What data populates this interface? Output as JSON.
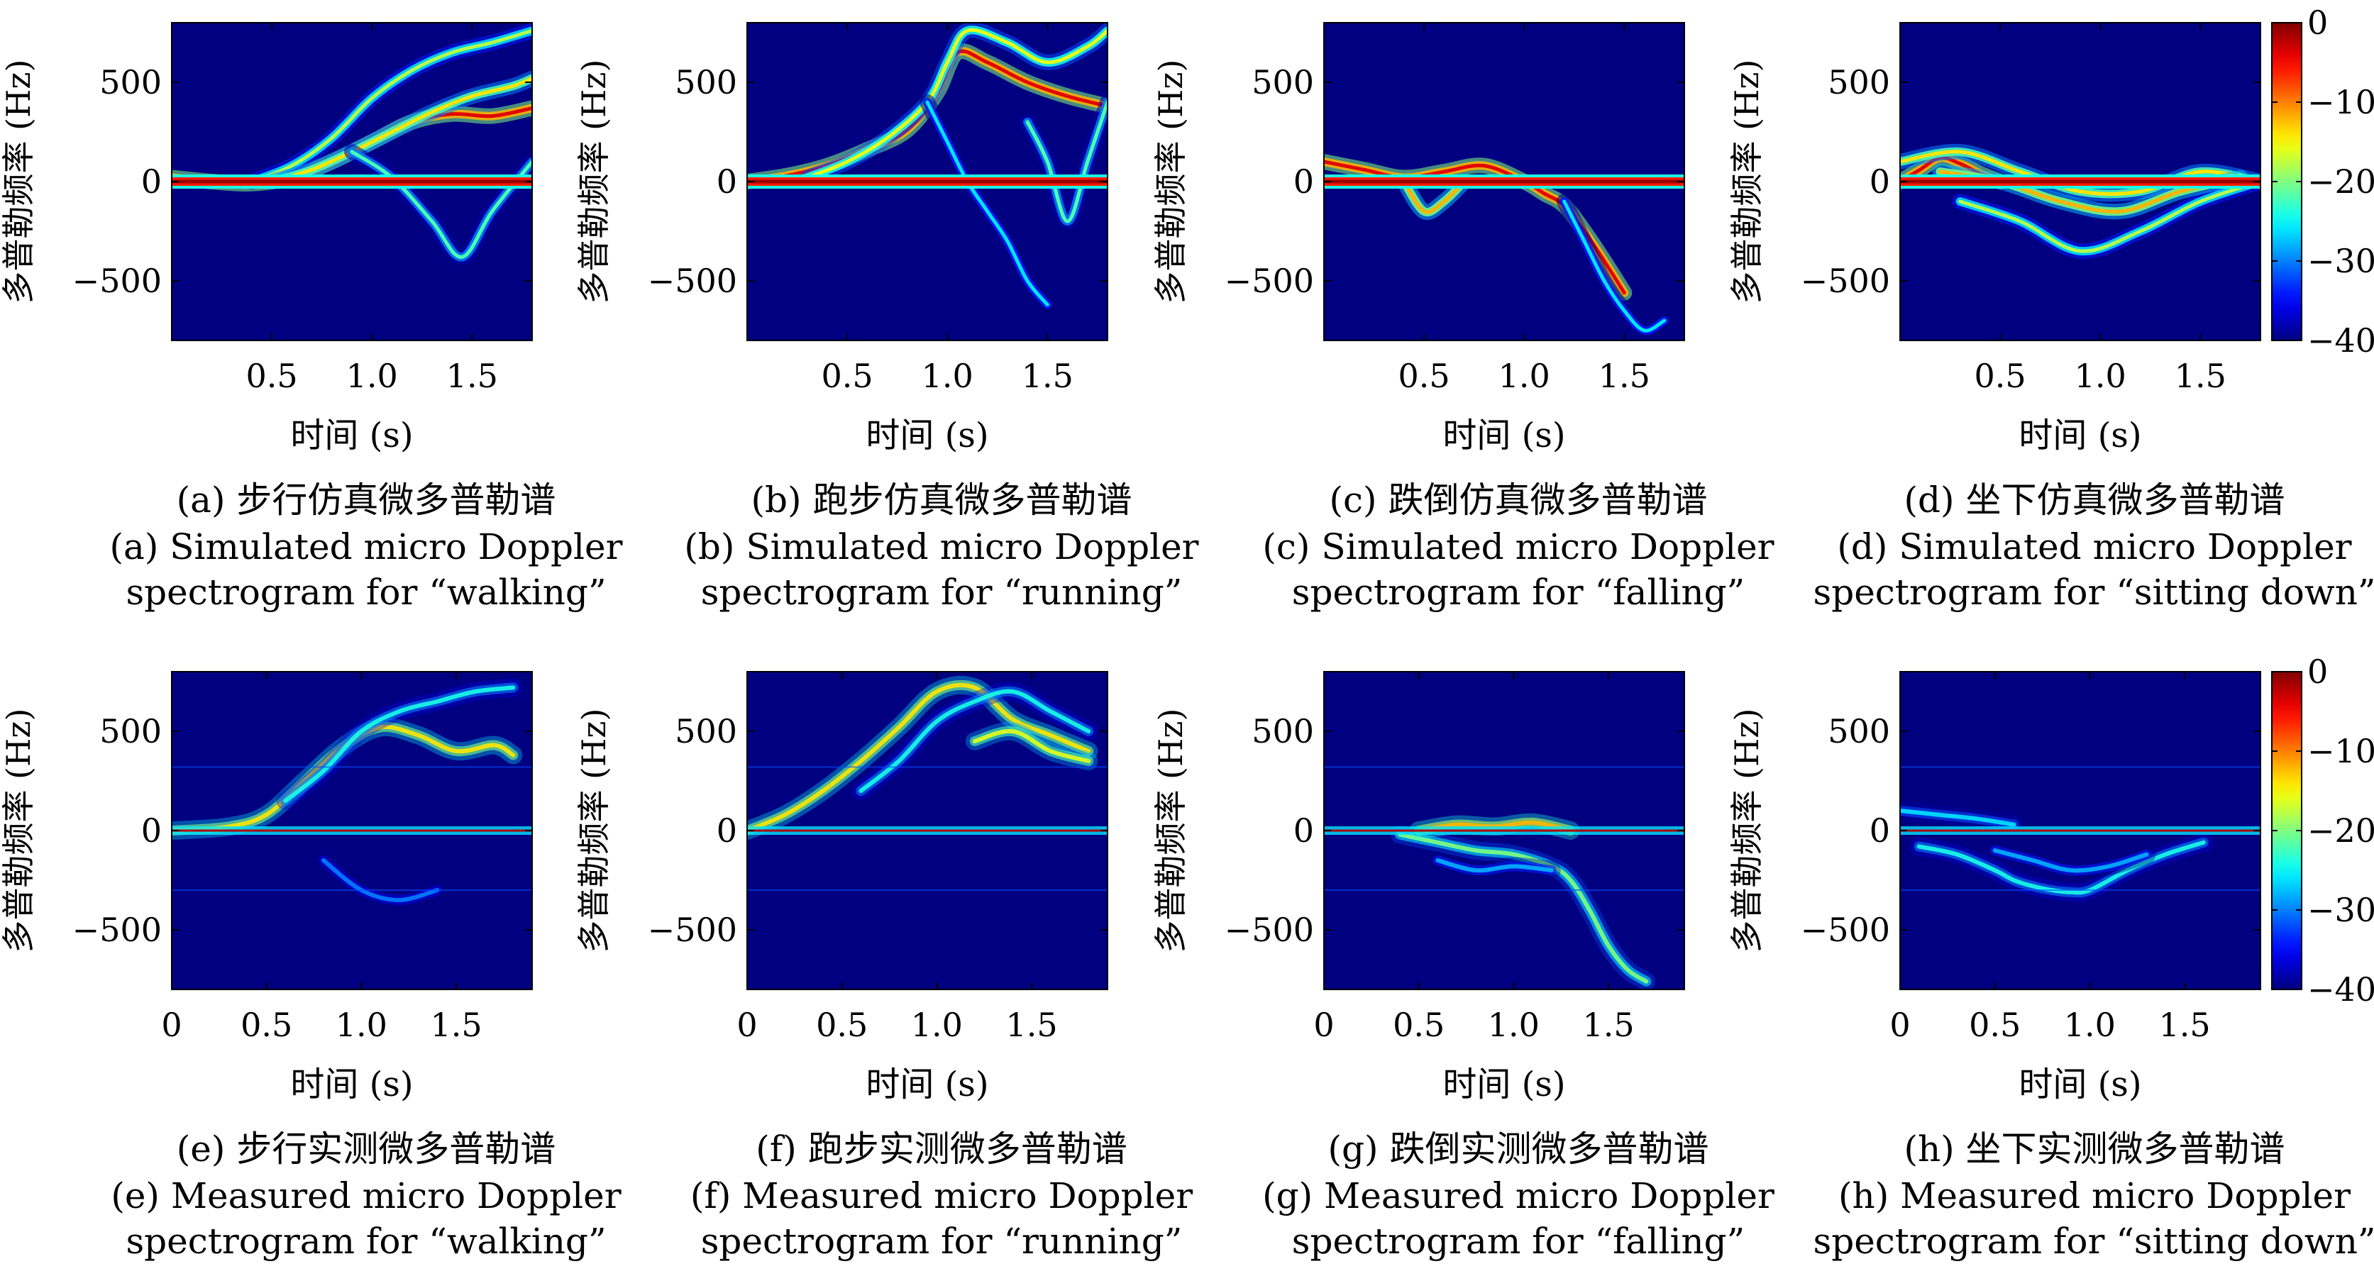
{
  "colorbar": {
    "ticks": [
      "0",
      "−10",
      "−20",
      "−30",
      "−40"
    ],
    "colormap": "jet"
  },
  "chart_data": [
    {
      "type": "heatmap",
      "id": "a",
      "caption_cn": "(a) 步行仿真微多普勒谱",
      "caption_en_1": "(a) Simulated micro Doppler",
      "caption_en_2": "spectrogram for “walking”",
      "xlabel": "时间 (s)",
      "ylabel": "多普勒频率 (Hz)",
      "xticks": [
        "0.5",
        "1.0",
        "1.5"
      ],
      "yticks": [
        "500",
        "0",
        "−500"
      ],
      "xlim": [
        0,
        1.8
      ],
      "ylim": [
        -800,
        800
      ],
      "zlim": [
        -40,
        0
      ],
      "ridges": [
        {
          "t": [
            0,
            0.2,
            0.4,
            0.6,
            0.8,
            1.0,
            1.2,
            1.4,
            1.6,
            1.8
          ],
          "f": [
            20,
            0,
            -10,
            20,
            100,
            200,
            300,
            340,
            330,
            370
          ],
          "level": -4
        },
        {
          "t": [
            0.4,
            0.6,
            0.8,
            1.0,
            1.2,
            1.4,
            1.6,
            1.8
          ],
          "f": [
            0,
            80,
            220,
            420,
            560,
            650,
            700,
            760
          ],
          "level": -18
        },
        {
          "t": [
            0.5,
            0.7,
            0.9,
            1.1,
            1.3,
            1.5,
            1.7,
            1.8
          ],
          "f": [
            0,
            60,
            150,
            250,
            350,
            430,
            480,
            520
          ],
          "level": -14
        },
        {
          "t": [
            0.9,
            1.1,
            1.3,
            1.45,
            1.6,
            1.8
          ],
          "f": [
            150,
            20,
            -200,
            -380,
            -150,
            100
          ],
          "level": -22
        }
      ]
    },
    {
      "type": "heatmap",
      "id": "b",
      "caption_cn": "(b) 跑步仿真微多普勒谱",
      "caption_en_1": "(b) Simulated micro Doppler",
      "caption_en_2": "spectrogram for “running”",
      "xlabel": "时间 (s)",
      "ylabel": "多普勒频率 (Hz)",
      "xticks": [
        "0.5",
        "1.0",
        "1.5"
      ],
      "yticks": [
        "500",
        "0",
        "−500"
      ],
      "xlim": [
        0,
        1.8
      ],
      "ylim": [
        -800,
        800
      ],
      "zlim": [
        -40,
        0
      ],
      "ridges": [
        {
          "t": [
            0,
            0.2,
            0.4,
            0.6,
            0.8,
            0.95,
            1.05,
            1.2,
            1.4,
            1.6,
            1.8
          ],
          "f": [
            0,
            30,
            80,
            160,
            260,
            450,
            650,
            600,
            500,
            430,
            380
          ],
          "level": -4
        },
        {
          "t": [
            0.3,
            0.5,
            0.7,
            0.9,
            1.0,
            1.1,
            1.3,
            1.5,
            1.7,
            1.8
          ],
          "f": [
            20,
            100,
            220,
            400,
            600,
            760,
            700,
            600,
            680,
            760
          ],
          "level": -16
        },
        {
          "t": [
            0.9,
            1.0,
            1.1,
            1.2,
            1.3,
            1.4,
            1.5
          ],
          "f": [
            400,
            200,
            0,
            -150,
            -300,
            -500,
            -620
          ],
          "level": -26
        },
        {
          "t": [
            1.4,
            1.5,
            1.6,
            1.7,
            1.8
          ],
          "f": [
            300,
            100,
            -200,
            100,
            400
          ],
          "level": -22
        }
      ]
    },
    {
      "type": "heatmap",
      "id": "c",
      "caption_cn": "(c) 跌倒仿真微多普勒谱",
      "caption_en_1": "(c) Simulated micro Doppler",
      "caption_en_2": "spectrogram for “falling”",
      "xlabel": "时间 (s)",
      "ylabel": "多普勒频率 (Hz)",
      "xticks": [
        "0.5",
        "1.0",
        "1.5"
      ],
      "yticks": [
        "500",
        "0",
        "−500"
      ],
      "xlim": [
        0,
        1.8
      ],
      "ylim": [
        -800,
        800
      ],
      "zlim": [
        -40,
        0
      ],
      "ridges": [
        {
          "t": [
            0,
            0.2,
            0.4,
            0.6,
            0.8,
            1.0,
            1.1,
            1.2,
            1.3,
            1.4,
            1.5
          ],
          "f": [
            100,
            60,
            20,
            50,
            80,
            0,
            -60,
            -120,
            -250,
            -400,
            -560
          ],
          "level": -4
        },
        {
          "t": [
            0.4,
            0.5,
            0.6,
            0.7
          ],
          "f": [
            0,
            -150,
            -100,
            0
          ],
          "level": -12
        },
        {
          "t": [
            1.2,
            1.3,
            1.4,
            1.5,
            1.6,
            1.7
          ],
          "f": [
            -100,
            -300,
            -500,
            -650,
            -750,
            -700
          ],
          "level": -26
        }
      ]
    },
    {
      "type": "heatmap",
      "id": "d",
      "caption_cn": "(d) 坐下仿真微多普勒谱",
      "caption_en_1": "(d) Simulated micro Doppler",
      "caption_en_2": "spectrogram for “sitting down”",
      "xlabel": "时间 (s)",
      "ylabel": "多普勒频率 (Hz)",
      "xticks": [
        "0.5",
        "1.0",
        "1.5"
      ],
      "yticks": [
        "500",
        "0",
        "−500"
      ],
      "xlim": [
        0,
        1.8
      ],
      "ylim": [
        -800,
        800
      ],
      "zlim": [
        -40,
        0
      ],
      "ridges": [
        {
          "t": [
            0,
            0.1,
            0.2,
            0.3,
            0.4,
            0.5
          ],
          "f": [
            0,
            60,
            120,
            90,
            40,
            0
          ],
          "level": -4
        },
        {
          "t": [
            0,
            0.3,
            0.6,
            0.9,
            1.2,
            1.5,
            1.8
          ],
          "f": [
            100,
            150,
            50,
            -50,
            -50,
            50,
            0
          ],
          "level": -14
        },
        {
          "t": [
            0.3,
            0.6,
            0.9,
            1.2,
            1.5,
            1.8
          ],
          "f": [
            -100,
            -200,
            -350,
            -250,
            -100,
            0
          ],
          "level": -18
        },
        {
          "t": [
            0.2,
            0.5,
            0.8,
            1.1,
            1.4,
            1.7
          ],
          "f": [
            50,
            0,
            -100,
            -150,
            -50,
            20
          ],
          "level": -12
        }
      ]
    },
    {
      "type": "heatmap",
      "id": "e",
      "caption_cn": "(e) 步行实测微多普勒谱",
      "caption_en_1": "(e) Measured micro Doppler",
      "caption_en_2": "spectrogram for “walking”",
      "xlabel": "时间 (s)",
      "ylabel": "多普勒频率 (Hz)",
      "xticks": [
        "0",
        "0.5",
        "1.0",
        "1.5"
      ],
      "yticks": [
        "500",
        "0",
        "−500"
      ],
      "xlim": [
        0,
        1.9
      ],
      "ylim": [
        -800,
        800
      ],
      "zlim": [
        -40,
        0
      ],
      "ridges": [
        {
          "t": [
            0,
            0.3,
            0.5,
            0.7,
            0.9,
            1.1,
            1.3,
            1.5,
            1.7,
            1.8
          ],
          "f": [
            0,
            20,
            80,
            250,
            420,
            520,
            480,
            400,
            430,
            380
          ],
          "level": -14
        },
        {
          "t": [
            0.6,
            0.8,
            1.0,
            1.2,
            1.4,
            1.6,
            1.8
          ],
          "f": [
            150,
            300,
            500,
            600,
            650,
            700,
            720
          ],
          "level": -24
        },
        {
          "t": [
            0.8,
            1.0,
            1.2,
            1.4
          ],
          "f": [
            -150,
            -300,
            -350,
            -300
          ],
          "level": -30
        }
      ]
    },
    {
      "type": "heatmap",
      "id": "f",
      "caption_cn": "(f) 跑步实测微多普勒谱",
      "caption_en_1": "(f) Measured micro Doppler",
      "caption_en_2": "spectrogram for “running”",
      "xlabel": "时间 (s)",
      "ylabel": "多普勒频率 (Hz)",
      "xticks": [
        "0",
        "0.5",
        "1.0",
        "1.5"
      ],
      "yticks": [
        "500",
        "0",
        "−500"
      ],
      "xlim": [
        0,
        1.9
      ],
      "ylim": [
        -800,
        800
      ],
      "zlim": [
        -40,
        0
      ],
      "ridges": [
        {
          "t": [
            0,
            0.2,
            0.4,
            0.6,
            0.8,
            1.0,
            1.2,
            1.4,
            1.6,
            1.8
          ],
          "f": [
            0,
            80,
            200,
            350,
            520,
            700,
            720,
            560,
            480,
            400
          ],
          "level": -14
        },
        {
          "t": [
            0.6,
            0.8,
            1.0,
            1.2,
            1.4,
            1.6,
            1.8
          ],
          "f": [
            200,
            350,
            550,
            650,
            700,
            600,
            500
          ],
          "level": -24
        },
        {
          "t": [
            1.2,
            1.4,
            1.6,
            1.8
          ],
          "f": [
            450,
            500,
            400,
            350
          ],
          "level": -16
        }
      ]
    },
    {
      "type": "heatmap",
      "id": "g",
      "caption_cn": "(g) 跌倒实测微多普勒谱",
      "caption_en_1": "(g) Measured micro Doppler",
      "caption_en_2": "spectrogram for “falling”",
      "xlabel": "时间 (s)",
      "ylabel": "多普勒频率 (Hz)",
      "xticks": [
        "0",
        "0.5",
        "1.0",
        "1.5"
      ],
      "yticks": [
        "500",
        "0",
        "−500"
      ],
      "xlim": [
        0,
        1.9
      ],
      "ylim": [
        -800,
        800
      ],
      "zlim": [
        -40,
        0
      ],
      "ridges": [
        {
          "t": [
            0.4,
            0.6,
            0.8,
            1.0,
            1.2,
            1.3,
            1.4,
            1.5,
            1.6,
            1.7
          ],
          "f": [
            -20,
            -60,
            -100,
            -120,
            -180,
            -250,
            -400,
            -580,
            -700,
            -760
          ],
          "level": -20
        },
        {
          "t": [
            0.5,
            0.7,
            0.9,
            1.1,
            1.3
          ],
          "f": [
            0,
            30,
            20,
            40,
            0
          ],
          "level": -12
        },
        {
          "t": [
            0.6,
            0.8,
            1.0,
            1.2
          ],
          "f": [
            -150,
            -200,
            -180,
            -200
          ],
          "level": -28
        }
      ]
    },
    {
      "type": "heatmap",
      "id": "h",
      "caption_cn": "(h) 坐下实测微多普勒谱",
      "caption_en_1": "(h) Measured micro Doppler",
      "caption_en_2": "spectrogram for “sitting down”",
      "xlabel": "时间 (s)",
      "ylabel": "多普勒频率 (Hz)",
      "xticks": [
        "0",
        "0.5",
        "1.0",
        "1.5"
      ],
      "yticks": [
        "500",
        "0",
        "−500"
      ],
      "xlim": [
        0,
        1.9
      ],
      "ylim": [
        -800,
        800
      ],
      "zlim": [
        -40,
        0
      ],
      "ridges": [
        {
          "t": [
            0.1,
            0.3,
            0.5,
            0.6,
            0.7,
            0.8,
            0.9,
            1.0,
            1.2,
            1.4,
            1.6
          ],
          "f": [
            -80,
            -120,
            -200,
            -250,
            -280,
            -300,
            -310,
            -300,
            -200,
            -120,
            -60
          ],
          "level": -24
        },
        {
          "t": [
            0,
            0.2,
            0.4,
            0.6
          ],
          "f": [
            100,
            80,
            60,
            30
          ],
          "level": -26
        },
        {
          "t": [
            0.5,
            0.7,
            0.9,
            1.1,
            1.3
          ],
          "f": [
            -100,
            -150,
            -200,
            -180,
            -120
          ],
          "level": -28
        }
      ]
    }
  ]
}
